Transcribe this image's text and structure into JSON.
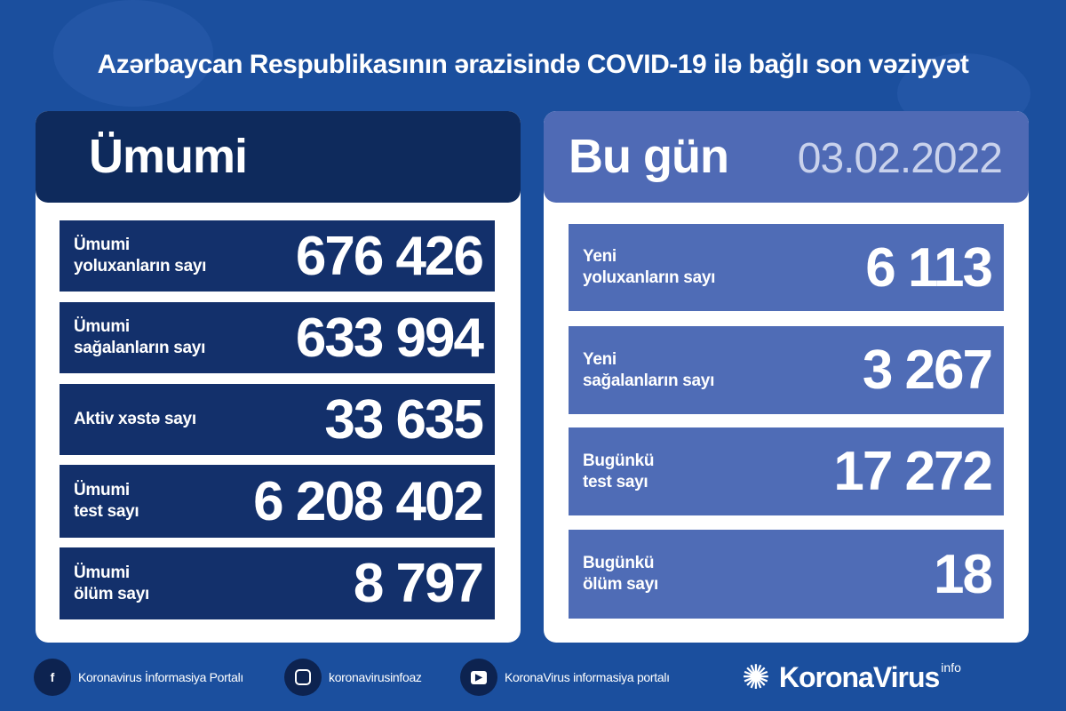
{
  "title": "Azərbaycan Respublikasının ərazisində COVID-19 ilə bağlı son vəziyyət",
  "colors": {
    "background": "#1b4f9e",
    "left_header": "#0e2a5c",
    "left_rows": "#13306b",
    "right_header": "#4f6ab5",
    "right_rows": "#4f6cb6"
  },
  "total": {
    "heading": "Ümumi",
    "rows": [
      {
        "label": "Ümumi\nyoluxanların sayı",
        "value": "676 426"
      },
      {
        "label": "Ümumi\nsağalanların sayı",
        "value": "633 994"
      },
      {
        "label": "Aktiv xəstə sayı",
        "value": "33 635"
      },
      {
        "label": "Ümumi\ntest sayı",
        "value": "6 208 402"
      },
      {
        "label": "Ümumi\nölüm sayı",
        "value": "8 797"
      }
    ]
  },
  "today": {
    "heading": "Bu gün",
    "date": "03.02.2022",
    "rows": [
      {
        "label": "Yeni\nyoluxanların sayı",
        "value": "6 113"
      },
      {
        "label": "Yeni\nsağalanların sayı",
        "value": "3 267"
      },
      {
        "label": "Bugünkü\ntest sayı",
        "value": "17 272"
      },
      {
        "label": "Bugünkü\nölüm sayı",
        "value": "18"
      }
    ]
  },
  "footer": {
    "facebook": "Koronavirus İnformasiya Portalı",
    "instagram": "koronavirusinfoaz",
    "youtube": "KoronaVirus informasiya portalı",
    "logo": "KoronaVirus",
    "logo_sup": "info"
  }
}
